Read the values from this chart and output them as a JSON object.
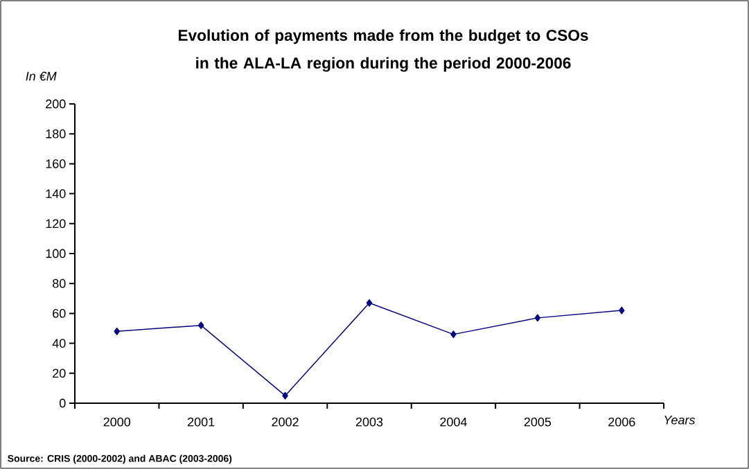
{
  "chart_data": {
    "type": "line",
    "title": "Evolution of payments made from the budget to CSOs in the ALA-LA region during the period 2000-2006",
    "ylabel": "In €M",
    "xlabel": "Years",
    "annotations": [
      "Source: CRIS (2000-2002) and ABAC (2003-2006)"
    ],
    "categories": [
      "2000",
      "2001",
      "2002",
      "2003",
      "2004",
      "2005",
      "2006"
    ],
    "series": [
      {
        "color": "#000080",
        "values": [
          48,
          52,
          5,
          67,
          46,
          57,
          62
        ]
      }
    ],
    "ylim": [
      0,
      200
    ],
    "yticks": [
      0,
      20,
      40,
      60,
      80,
      100,
      120,
      140,
      160,
      180,
      200
    ],
    "marker": "diamond",
    "line_style": "solid"
  }
}
